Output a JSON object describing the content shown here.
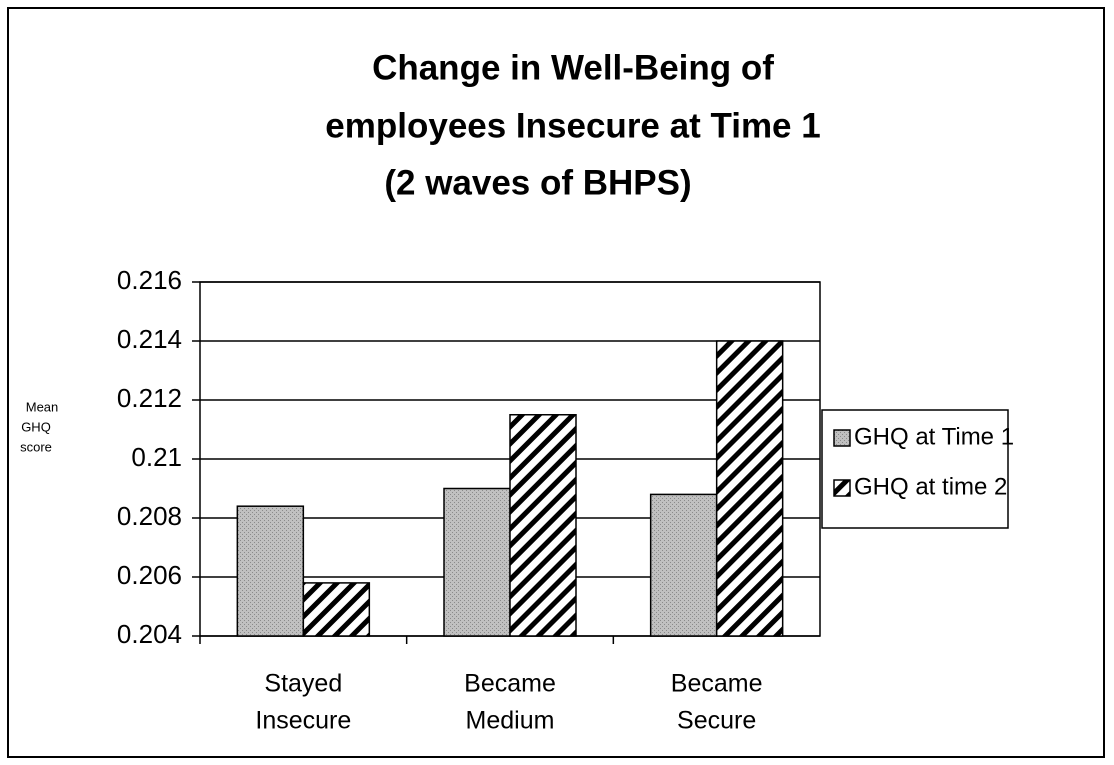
{
  "chart_data": {
    "type": "bar",
    "title": [
      "Change in Well-Being of",
      "employees Insecure at Time 1"
    ],
    "subtitle": "(2 waves of BHPS)",
    "y_label": [
      "Mean",
      "GHQ",
      "score"
    ],
    "categories": [
      [
        "Stayed",
        "Insecure"
      ],
      [
        "Became",
        "Medium"
      ],
      [
        "Became",
        "Secure"
      ]
    ],
    "series": [
      {
        "name": "GHQ at Time 1",
        "color": "#c0c0c0",
        "values": [
          0.2084,
          0.209,
          0.2088
        ]
      },
      {
        "name": "GHQ at time 2",
        "color": "#000000",
        "values": [
          0.2058,
          0.2115,
          0.214
        ]
      }
    ],
    "ylim": [
      0.204,
      0.216
    ],
    "yticks": [
      0.204,
      0.206,
      0.208,
      0.21,
      0.212,
      0.214,
      0.216
    ],
    "grid": true,
    "legend": "right"
  }
}
